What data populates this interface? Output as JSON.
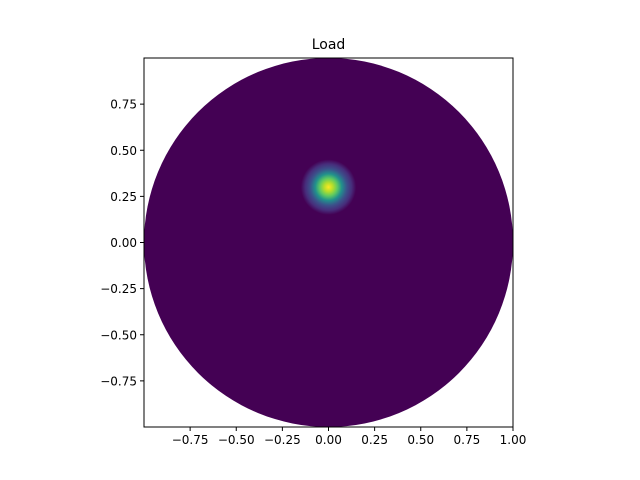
{
  "chart_data": {
    "type": "heatmap",
    "title": "Load",
    "xlabel": "",
    "ylabel": "",
    "xlim": [
      -1.0,
      1.0
    ],
    "ylim": [
      -1.0,
      1.0
    ],
    "xticks": [
      -0.75,
      -0.5,
      -0.25,
      0.0,
      0.25,
      0.5,
      0.75,
      1.0
    ],
    "xtick_labels": [
      "−0.75",
      "−0.50",
      "−0.25",
      "0.00",
      "0.25",
      "0.50",
      "0.75",
      "1.00"
    ],
    "yticks": [
      0.75,
      0.5,
      0.25,
      0.0,
      -0.25,
      -0.5,
      -0.75
    ],
    "ytick_labels": [
      "0.75",
      "0.50",
      "0.25",
      "0.00",
      "−0.25",
      "−0.50",
      "−0.75"
    ],
    "domain": {
      "shape": "disk",
      "center": [
        0.0,
        0.0
      ],
      "radius": 1.0
    },
    "load": {
      "center": [
        0.0,
        0.3
      ],
      "visible_radius": 0.15,
      "colormap": "viridis",
      "background_color": "#440154",
      "peak_color": "#fde725"
    },
    "grid": false,
    "legend": "none"
  }
}
